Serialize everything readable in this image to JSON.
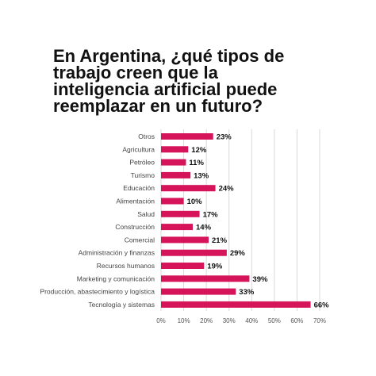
{
  "colors": {
    "bar": "#D5145A",
    "text": "#111111"
  },
  "chart_data": {
    "type": "bar",
    "orientation": "horizontal",
    "title": "En Argentina, ¿qué tipos de trabajo creen que la inteligencia artificial puede reemplazar en un futuro?",
    "categories": [
      "Otros",
      "Agricultura",
      "Petróleo",
      "Turismo",
      "Educación",
      "Alimentación",
      "Salud",
      "Construcción",
      "Comercial",
      "Administración y finanzas",
      "Recursos humanos",
      "Marketing y comunicación",
      "Producción, abastecimiento y logística",
      "Tecnología y sistemas"
    ],
    "values": [
      23,
      12,
      11,
      13,
      24,
      10,
      17,
      14,
      21,
      29,
      19,
      39,
      33,
      66
    ],
    "value_labels": [
      "23%",
      "12%",
      "11%",
      "13%",
      "24%",
      "10%",
      "17%",
      "14%",
      "21%",
      "29%",
      "19%",
      "39%",
      "33%",
      "66%"
    ],
    "xlim": [
      0,
      70
    ],
    "xticks": [
      "0%",
      "10%",
      "20%",
      "30%",
      "40%",
      "50%",
      "60%",
      "70%"
    ],
    "grid": true
  }
}
